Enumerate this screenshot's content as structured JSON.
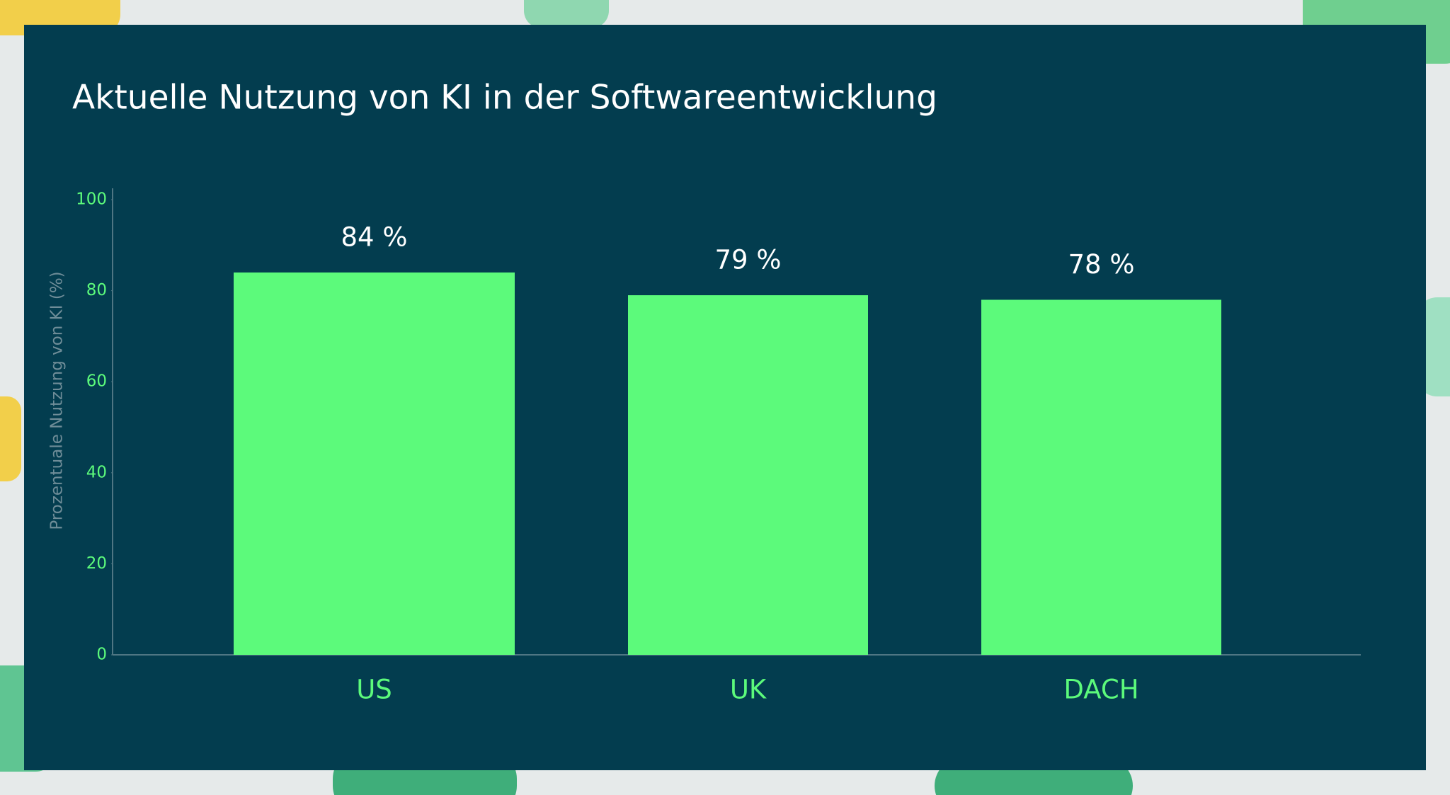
{
  "chart_data": {
    "type": "bar",
    "title": "Aktuelle Nutzung von KI in der Softwareentwicklung",
    "y_label": "Prozentuale Nutzung von KI (%)",
    "categories": [
      "US",
      "UK",
      "DACH"
    ],
    "values": [
      84,
      79,
      78
    ],
    "value_labels": [
      "84 %",
      "79 %",
      "78 %"
    ],
    "color": "#5cfa7b",
    "ylim": [
      0,
      100
    ],
    "yticks": [
      0,
      20,
      40,
      60,
      80,
      100
    ]
  }
}
